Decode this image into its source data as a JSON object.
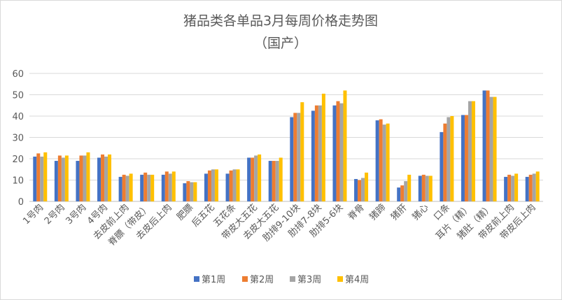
{
  "chart_data": {
    "type": "bar",
    "title": "猪品类各单品3月每周价格走势图",
    "subtitle": "（国产）",
    "xlabel": "",
    "ylabel": "",
    "ylim": [
      0,
      60
    ],
    "yticks": [
      0,
      10,
      20,
      30,
      40,
      50,
      60
    ],
    "grid": true,
    "legend_position": "bottom",
    "categories": [
      "1号肉",
      "2号肉",
      "3号肉",
      "4号肉",
      "去皮前上肉",
      "脊膘（带皮）",
      "去皮后上肉",
      "肥膘",
      "后五花",
      "五花条",
      "带皮大五花",
      "去皮大五花",
      "肋排9-10块",
      "肋排7-8块",
      "肋排5-6块",
      "脊骨",
      "猪蹄",
      "猪肝",
      "猪心",
      "口条",
      "耳片（精）",
      "猪肚（精）",
      "带皮前上肉",
      "带皮后上肉"
    ],
    "series": [
      {
        "name": "第1周",
        "color": "#4472C4",
        "values": [
          21,
          19,
          19,
          20.5,
          11.5,
          12.5,
          12.5,
          8.5,
          13,
          13,
          20.5,
          19,
          39.5,
          42.5,
          45,
          10.5,
          38,
          6.5,
          12,
          32.5,
          40.5,
          52,
          11.5,
          11.5
        ]
      },
      {
        "name": "第2周",
        "color": "#ED7D31",
        "values": [
          22.5,
          21.5,
          21.5,
          22,
          12.5,
          13.5,
          14,
          9.5,
          14.5,
          14.5,
          20.5,
          19,
          41.5,
          45,
          47,
          10,
          38.5,
          7.5,
          12.5,
          36.5,
          40.5,
          52,
          12.5,
          12.5
        ]
      },
      {
        "name": "第3周",
        "color": "#A5A5A5",
        "values": [
          21,
          20.5,
          21.5,
          21,
          12,
          12.5,
          13,
          9,
          15,
          15,
          21.5,
          19,
          41.5,
          45,
          46,
          11,
          36,
          9.5,
          12,
          39.5,
          47,
          49,
          12,
          13
        ]
      },
      {
        "name": "第4周",
        "color": "#FFC000",
        "values": [
          23,
          21.5,
          23,
          22,
          13,
          12.5,
          14,
          9,
          15,
          15,
          22,
          20.5,
          46.5,
          50.5,
          52,
          13.5,
          36.5,
          12.5,
          12,
          40,
          47,
          49,
          13,
          14
        ]
      }
    ]
  }
}
